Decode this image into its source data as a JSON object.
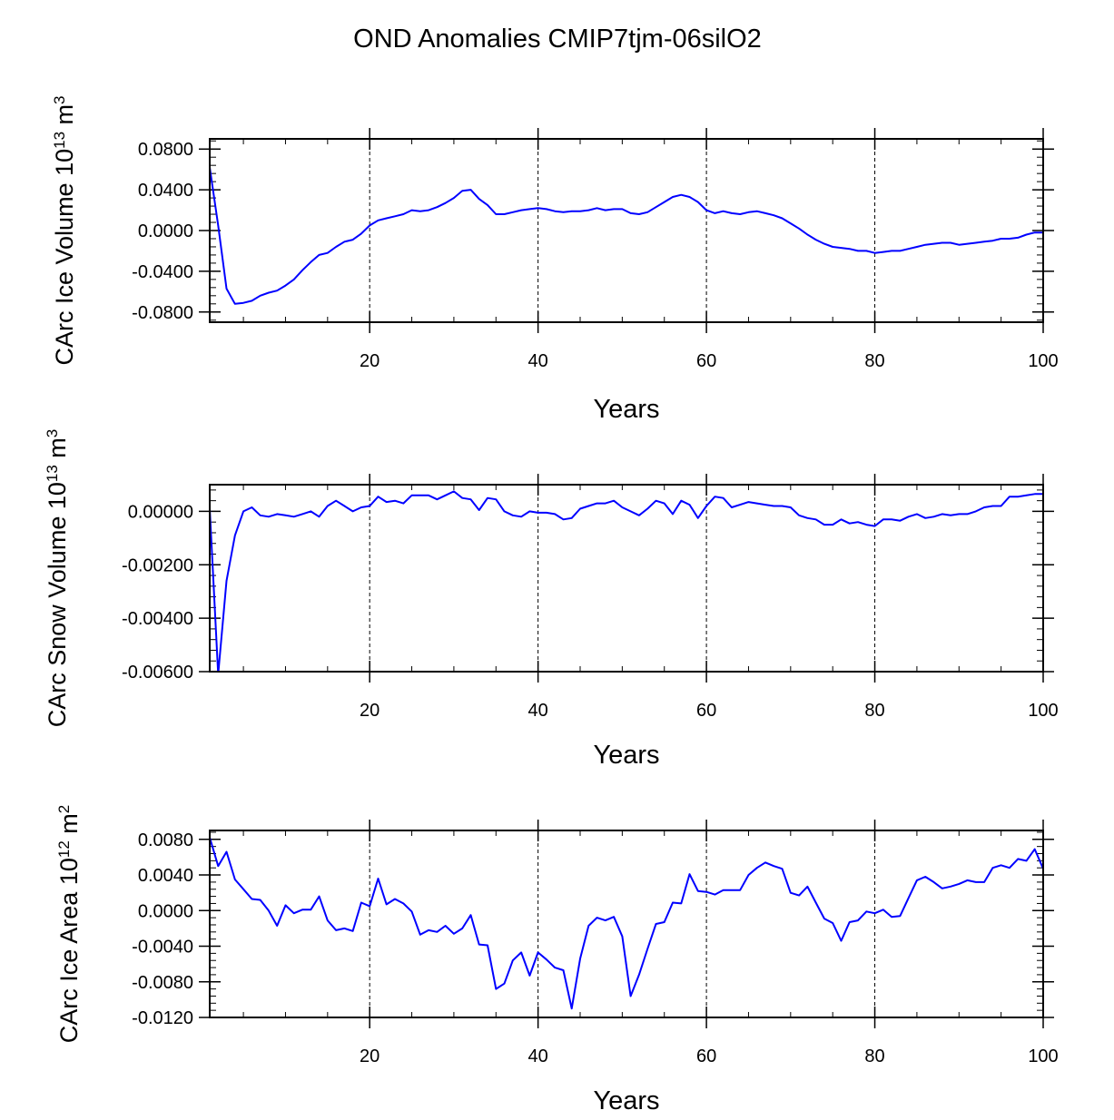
{
  "title": "OND Anomalies CMIP7tjm-06silO2",
  "colors": {
    "line": "#0000ff",
    "axis": "#000000",
    "grid": "#000000"
  },
  "chart_data": [
    {
      "type": "line",
      "xlabel": "Years",
      "ylabel": {
        "pre": "CArc Ice Volume 10",
        "exp": "13",
        "mid": " m",
        "unit_exp": "3"
      },
      "xlim": [
        1,
        100
      ],
      "ylim": [
        -0.09,
        0.09
      ],
      "xticks": [
        20,
        40,
        60,
        80,
        100
      ],
      "xtick_labels": [
        "20",
        "40",
        "60",
        "80",
        "100"
      ],
      "yticks": [
        0.08,
        0.04,
        0.0,
        -0.04,
        -0.08
      ],
      "ytick_labels": [
        "0.0800",
        "0.0400",
        "0.0000",
        "-0.0400",
        "-0.0800"
      ],
      "yminor_step": 0.008,
      "grid_x": [
        20,
        40,
        60,
        80
      ],
      "series": [
        {
          "name": "CArc Ice Volume",
          "x_start": 1,
          "values": [
            0.062,
            0.005,
            -0.057,
            -0.072,
            -0.071,
            -0.069,
            -0.064,
            -0.061,
            -0.059,
            -0.054,
            -0.048,
            -0.039,
            -0.031,
            -0.024,
            -0.022,
            -0.016,
            -0.011,
            -0.009,
            -0.003,
            0.005,
            0.01,
            0.012,
            0.014,
            0.016,
            0.02,
            0.019,
            0.02,
            0.023,
            0.027,
            0.032,
            0.039,
            0.04,
            0.031,
            0.025,
            0.016,
            0.016,
            0.018,
            0.02,
            0.021,
            0.022,
            0.021,
            0.019,
            0.018,
            0.019,
            0.019,
            0.02,
            0.022,
            0.02,
            0.021,
            0.021,
            0.017,
            0.016,
            0.018,
            0.023,
            0.028,
            0.033,
            0.035,
            0.033,
            0.028,
            0.02,
            0.017,
            0.019,
            0.017,
            0.016,
            0.018,
            0.019,
            0.017,
            0.015,
            0.012,
            0.007,
            0.002,
            -0.004,
            -0.009,
            -0.013,
            -0.016,
            -0.017,
            -0.018,
            -0.02,
            -0.02,
            -0.022,
            -0.021,
            -0.02,
            -0.02,
            -0.018,
            -0.016,
            -0.014,
            -0.013,
            -0.012,
            -0.012,
            -0.014,
            -0.013,
            -0.012,
            -0.011,
            -0.01,
            -0.008,
            -0.008,
            -0.007,
            -0.004,
            -0.002,
            -0.002
          ]
        }
      ]
    },
    {
      "type": "line",
      "xlabel": "Years",
      "ylabel": {
        "pre": "CArc Snow Volume 10",
        "exp": "13",
        "mid": " m",
        "unit_exp": "3"
      },
      "xlim": [
        1,
        100
      ],
      "ylim": [
        -0.006,
        0.001
      ],
      "xticks": [
        20,
        40,
        60,
        80,
        100
      ],
      "xtick_labels": [
        "20",
        "40",
        "60",
        "80",
        "100"
      ],
      "yticks": [
        0.0,
        -0.002,
        -0.004,
        -0.006
      ],
      "ytick_labels": [
        "0.00000",
        "-0.00200",
        "-0.00400",
        "-0.00600"
      ],
      "yminor_step": 0.0004,
      "grid_x": [
        20,
        40,
        60,
        80
      ],
      "series": [
        {
          "name": "CArc Snow Volume",
          "x_start": 1,
          "values": [
            0.0001,
            -0.0061,
            -0.0026,
            -0.0009,
            0.0,
            0.00015,
            -0.00015,
            -0.0002,
            -0.0001,
            -0.00015,
            -0.0002,
            -0.0001,
            0.0,
            -0.0002,
            0.0002,
            0.0004,
            0.0002,
            0.0,
            0.00015,
            0.0002,
            0.00055,
            0.00035,
            0.0004,
            0.0003,
            0.0006,
            0.0006,
            0.0006,
            0.00045,
            0.0006,
            0.00075,
            0.0005,
            0.00045,
            5e-05,
            0.0005,
            0.00045,
            0.0,
            -0.00015,
            -0.0002,
            0.0,
            -5e-05,
            -5e-05,
            -0.0001,
            -0.0003,
            -0.00025,
            0.0001,
            0.0002,
            0.0003,
            0.0003,
            0.0004,
            0.00015,
            0.0,
            -0.00015,
            0.0001,
            0.0004,
            0.0003,
            -0.0001,
            0.0004,
            0.00025,
            -0.00025,
            0.0002,
            0.00055,
            0.0005,
            0.00015,
            0.00025,
            0.00035,
            0.0003,
            0.00025,
            0.0002,
            0.0002,
            0.00015,
            -0.00015,
            -0.00025,
            -0.0003,
            -0.0005,
            -0.0005,
            -0.0003,
            -0.00045,
            -0.0004,
            -0.0005,
            -0.00055,
            -0.0003,
            -0.0003,
            -0.00035,
            -0.0002,
            -0.0001,
            -0.00025,
            -0.0002,
            -0.0001,
            -0.00015,
            -0.0001,
            -0.0001,
            0.0,
            0.00015,
            0.0002,
            0.0002,
            0.00055,
            0.00055,
            0.0006,
            0.00065,
            0.00065
          ]
        }
      ]
    },
    {
      "type": "line",
      "xlabel": "Years",
      "ylabel": {
        "pre": "CArc Ice Area 10",
        "exp": "12",
        "mid": " m",
        "unit_exp": "2"
      },
      "xlim": [
        1,
        100
      ],
      "ylim": [
        -0.012,
        0.009
      ],
      "xticks": [
        20,
        40,
        60,
        80,
        100
      ],
      "xtick_labels": [
        "20",
        "40",
        "60",
        "80",
        "100"
      ],
      "yticks": [
        0.008,
        0.004,
        0.0,
        -0.004,
        -0.008,
        -0.012
      ],
      "ytick_labels": [
        "0.0080",
        "0.0040",
        "0.0000",
        "-0.0040",
        "-0.0080",
        "-0.0120"
      ],
      "yminor_step": 0.0008,
      "grid_x": [
        20,
        40,
        60,
        80
      ],
      "series": [
        {
          "name": "CArc Ice Area",
          "x_start": 1,
          "values": [
            0.0082,
            0.005,
            0.0066,
            0.0035,
            0.0024,
            0.0013,
            0.0012,
            0.0,
            -0.0017,
            0.0006,
            -0.0003,
            0.0001,
            0.0001,
            0.0016,
            -0.0011,
            -0.0022,
            -0.002,
            -0.0023,
            0.0009,
            0.0005,
            0.0036,
            0.0007,
            0.0013,
            0.0008,
            -0.0001,
            -0.0027,
            -0.0022,
            -0.0024,
            -0.0017,
            -0.0026,
            -0.002,
            -0.0005,
            -0.0038,
            -0.0039,
            -0.0088,
            -0.0082,
            -0.0056,
            -0.0047,
            -0.0073,
            -0.0047,
            -0.0055,
            -0.0064,
            -0.0067,
            -0.011,
            -0.0054,
            -0.0017,
            -0.0008,
            -0.0011,
            -0.0007,
            -0.0029,
            -0.0096,
            -0.0072,
            -0.0043,
            -0.0015,
            -0.0013,
            0.0009,
            0.0008,
            0.0041,
            0.0022,
            0.0021,
            0.0018,
            0.0023,
            0.0023,
            0.0023,
            0.004,
            0.0048,
            0.0054,
            0.005,
            0.0047,
            0.002,
            0.0017,
            0.0027,
            0.0009,
            -0.0009,
            -0.0014,
            -0.0034,
            -0.0013,
            -0.0011,
            -0.0001,
            -0.0003,
            0.0001,
            -0.0007,
            -0.0006,
            0.0014,
            0.0034,
            0.0038,
            0.0032,
            0.0025,
            0.0027,
            0.003,
            0.0034,
            0.0032,
            0.0032,
            0.0048,
            0.0051,
            0.0048,
            0.0058,
            0.0056,
            0.0069,
            0.0047
          ]
        }
      ]
    }
  ]
}
